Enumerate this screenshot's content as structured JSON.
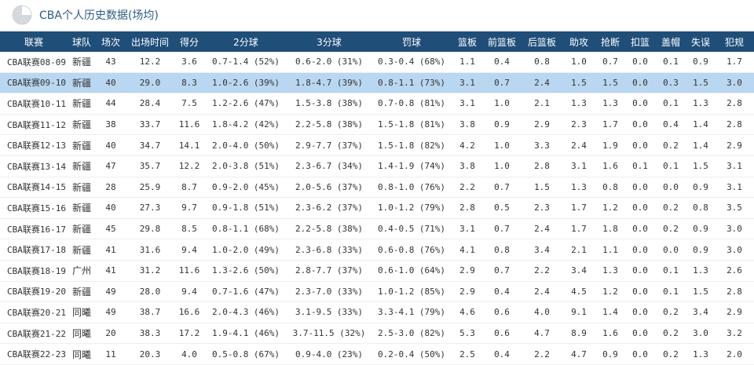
{
  "title": "CBA个人历史数据(场均)",
  "headers": [
    "联赛",
    "球队",
    "场次",
    "出场时间",
    "得分",
    "2分球",
    "3分球",
    "罚球",
    "篮板",
    "前篮板",
    "后篮板",
    "助攻",
    "抢断",
    "扣篮",
    "盖帽",
    "失误",
    "犯规"
  ],
  "highlight_row": 1,
  "rows": [
    [
      "CBA联赛08-09",
      "新疆",
      "43",
      "12.2",
      "3.6",
      "0.7-1.4 (52%)",
      "0.6-2.0 (31%)",
      "0.3-0.4 (68%)",
      "1.1",
      "0.4",
      "0.8",
      "1.0",
      "0.7",
      "0.0",
      "0.1",
      "0.9",
      "1.7"
    ],
    [
      "CBA联赛09-10",
      "新疆",
      "40",
      "29.0",
      "8.3",
      "1.0-2.6 (39%)",
      "1.8-4.7 (39%)",
      "0.8-1.1 (73%)",
      "3.1",
      "0.7",
      "2.4",
      "1.5",
      "1.5",
      "0.0",
      "0.3",
      "1.5",
      "3.0"
    ],
    [
      "CBA联赛10-11",
      "新疆",
      "44",
      "28.4",
      "7.5",
      "1.2-2.6 (47%)",
      "1.5-3.8 (38%)",
      "0.7-0.8 (81%)",
      "3.1",
      "1.0",
      "2.1",
      "1.3",
      "1.3",
      "0.0",
      "0.1",
      "1.3",
      "2.8"
    ],
    [
      "CBA联赛11-12",
      "新疆",
      "38",
      "33.7",
      "11.6",
      "1.8-4.2 (42%)",
      "2.2-5.8 (38%)",
      "1.5-1.8 (81%)",
      "3.8",
      "0.9",
      "2.9",
      "2.3",
      "1.7",
      "0.0",
      "0.4",
      "1.4",
      "2.8"
    ],
    [
      "CBA联赛12-13",
      "新疆",
      "40",
      "34.7",
      "14.1",
      "2.0-4.0 (50%)",
      "2.9-7.7 (37%)",
      "1.5-1.8 (82%)",
      "4.2",
      "1.0",
      "3.3",
      "2.4",
      "1.9",
      "0.0",
      "0.2",
      "1.4",
      "2.9"
    ],
    [
      "CBA联赛13-14",
      "新疆",
      "47",
      "35.7",
      "12.2",
      "2.0-3.8 (51%)",
      "2.3-6.7 (34%)",
      "1.4-1.9 (74%)",
      "3.8",
      "1.0",
      "2.8",
      "3.1",
      "1.6",
      "0.1",
      "0.1",
      "1.5",
      "3.1"
    ],
    [
      "CBA联赛14-15",
      "新疆",
      "28",
      "25.9",
      "8.7",
      "0.9-2.0 (45%)",
      "2.0-5.6 (37%)",
      "0.8-1.0 (76%)",
      "2.2",
      "0.7",
      "1.5",
      "1.3",
      "0.8",
      "0.0",
      "0.0",
      "0.9",
      "3.1"
    ],
    [
      "CBA联赛15-16",
      "新疆",
      "40",
      "27.3",
      "9.7",
      "0.9-1.8 (51%)",
      "2.3-6.2 (37%)",
      "1.0-1.2 (79%)",
      "2.8",
      "0.5",
      "2.3",
      "1.7",
      "1.2",
      "0.0",
      "0.2",
      "0.8",
      "3.5"
    ],
    [
      "CBA联赛16-17",
      "新疆",
      "45",
      "29.8",
      "8.5",
      "0.8-1.1 (68%)",
      "2.2-5.8 (38%)",
      "0.4-0.5 (71%)",
      "3.1",
      "0.7",
      "2.4",
      "1.7",
      "1.8",
      "0.0",
      "0.2",
      "0.9",
      "3.0"
    ],
    [
      "CBA联赛17-18",
      "新疆",
      "41",
      "31.6",
      "9.4",
      "1.0-2.0 (49%)",
      "2.3-6.8 (33%)",
      "0.6-0.8 (76%)",
      "4.1",
      "0.8",
      "3.4",
      "2.1",
      "1.1",
      "0.0",
      "0.0",
      "0.9",
      "3.0"
    ],
    [
      "CBA联赛18-19",
      "广州",
      "41",
      "31.2",
      "11.6",
      "1.3-2.6 (50%)",
      "2.8-7.7 (37%)",
      "0.6-1.0 (64%)",
      "2.9",
      "0.7",
      "2.2",
      "3.4",
      "1.3",
      "0.0",
      "0.1",
      "1.3",
      "2.6"
    ],
    [
      "CBA联赛19-20",
      "新疆",
      "49",
      "28.0",
      "9.4",
      "0.7-1.6 (47%)",
      "2.3-7.0 (33%)",
      "1.0-1.2 (85%)",
      "2.9",
      "0.4",
      "2.4",
      "4.5",
      "1.2",
      "0.0",
      "0.1",
      "1.5",
      "2.8"
    ],
    [
      "CBA联赛20-21",
      "同曦",
      "49",
      "38.7",
      "16.6",
      "2.0-4.3 (46%)",
      "3.1-9.5 (33%)",
      "3.3-4.1 (79%)",
      "4.6",
      "0.6",
      "4.0",
      "9.1",
      "1.4",
      "0.0",
      "0.2",
      "3.4",
      "2.9"
    ],
    [
      "CBA联赛21-22",
      "同曦",
      "20",
      "38.3",
      "17.2",
      "1.9-4.1 (46%)",
      "3.7-11.5 (32%)",
      "2.5-3.0 (82%)",
      "5.3",
      "0.6",
      "4.7",
      "8.9",
      "1.6",
      "0.0",
      "0.2",
      "3.0",
      "3.2"
    ],
    [
      "CBA联赛22-23",
      "同曦",
      "11",
      "20.3",
      "4.0",
      "0.5-0.8 (67%)",
      "0.9-4.0 (23%)",
      "0.2-0.4 (50%)",
      "2.5",
      "0.4",
      "2.2",
      "4.7",
      "0.9",
      "0.0",
      "0.2",
      "1.3",
      "2.0"
    ]
  ],
  "colors": {
    "header_bg": "#1f4e79",
    "highlight_bg": "#b9d7f0",
    "title_color": "#2b5c8a"
  },
  "icons": {
    "title_icon": "pie-chart-icon"
  }
}
